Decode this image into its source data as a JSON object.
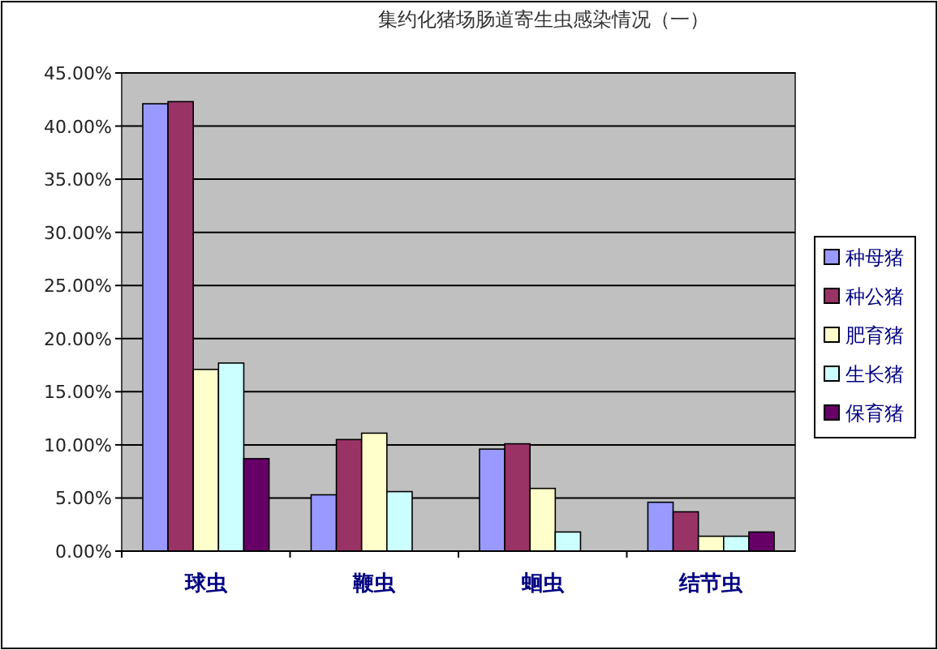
{
  "chart_data": {
    "type": "bar",
    "title": "集约化猪场肠道寄生虫感染情况（一）",
    "categories": [
      "球虫",
      "鞭虫",
      "蛔虫",
      "结节虫"
    ],
    "series": [
      {
        "name": "种母猪",
        "color": "#9999ff",
        "values": [
          42.1,
          5.3,
          9.6,
          4.6
        ]
      },
      {
        "name": "种公猪",
        "color": "#993366",
        "values": [
          42.3,
          10.5,
          10.1,
          3.7
        ]
      },
      {
        "name": "肥育猪",
        "color": "#ffffcc",
        "values": [
          17.1,
          11.1,
          5.9,
          1.4
        ]
      },
      {
        "name": "生长猪",
        "color": "#ccffff",
        "values": [
          17.7,
          5.6,
          1.8,
          1.4
        ]
      },
      {
        "name": "保育猪",
        "color": "#660066",
        "values": [
          8.7,
          0,
          0,
          1.8
        ]
      }
    ],
    "ylim": [
      0,
      45
    ],
    "yticks": [
      {
        "value": 0,
        "label": "0.00%"
      },
      {
        "value": 5,
        "label": "5.00%"
      },
      {
        "value": 10,
        "label": "10.00%"
      },
      {
        "value": 15,
        "label": "15.00%"
      },
      {
        "value": 20,
        "label": "20.00%"
      },
      {
        "value": 25,
        "label": "25.00%"
      },
      {
        "value": 30,
        "label": "30.00%"
      },
      {
        "value": 35,
        "label": "35.00%"
      },
      {
        "value": 40,
        "label": "40.00%"
      },
      {
        "value": 45,
        "label": "45.00%"
      }
    ],
    "grid": "y",
    "legend": "right"
  }
}
